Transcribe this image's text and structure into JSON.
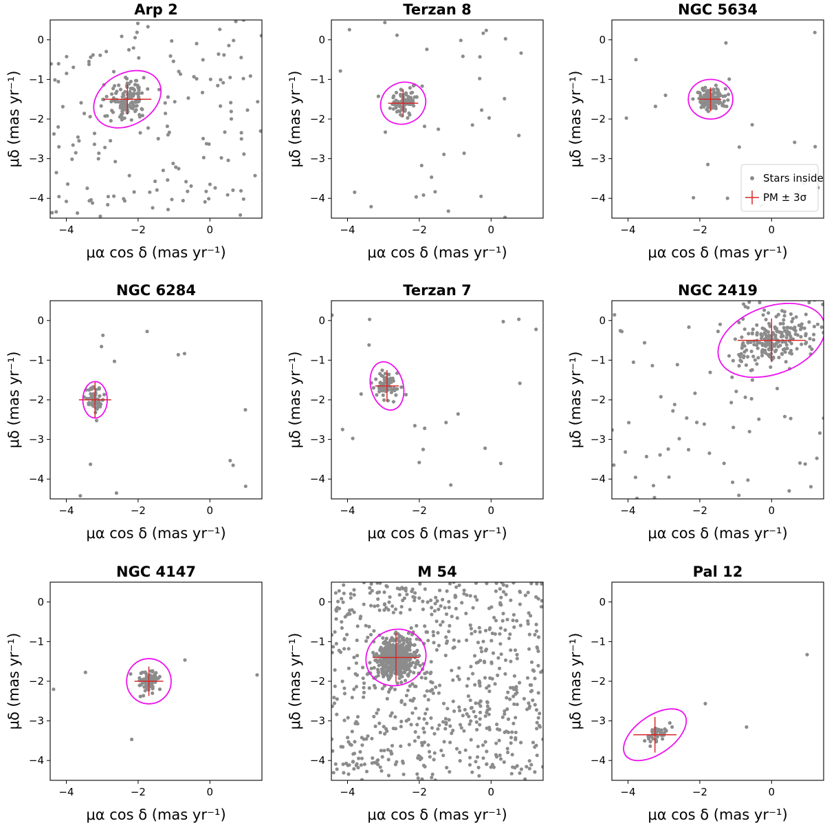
{
  "figure": {
    "xlabel": "μα cos δ (mas yr⁻¹)",
    "ylabel": "μδ (mas yr⁻¹)",
    "legend": {
      "stars_label": "Stars inside rt",
      "pm_label": "PM ± 3σ"
    }
  },
  "chart_data": [
    {
      "type": "scatter",
      "title": "Arp 2",
      "xlim": [
        -4.45,
        1.45
      ],
      "ylim": [
        -4.5,
        0.5
      ],
      "xticks": [
        -4,
        -2,
        0
      ],
      "yticks": [
        0,
        -1,
        -2,
        -3,
        -4
      ],
      "center": [
        -2.3,
        -1.5
      ],
      "xerr": 0.67,
      "yerr": 0.38,
      "ellipse": {
        "rx": 1.0,
        "ry": 0.65,
        "angle_deg": 30
      },
      "cluster": {
        "n": 130,
        "sx": 0.3,
        "sy": 0.22
      },
      "field": {
        "n": 150,
        "xrange": [
          -4.45,
          1.45
        ],
        "yrange": [
          -4.5,
          0.5
        ]
      }
    },
    {
      "type": "scatter",
      "title": "Terzan 8",
      "xlim": [
        -4.45,
        1.45
      ],
      "ylim": [
        -4.5,
        0.5
      ],
      "xticks": [
        -4,
        -2,
        0
      ],
      "yticks": [
        0,
        -1,
        -2,
        -3,
        -4
      ],
      "center": [
        -2.45,
        -1.6
      ],
      "xerr": 0.42,
      "yerr": 0.35,
      "ellipse": {
        "rx": 0.64,
        "ry": 0.52,
        "angle_deg": 25
      },
      "cluster": {
        "n": 90,
        "sx": 0.18,
        "sy": 0.14
      },
      "field": {
        "n": 35,
        "xrange": [
          -4.45,
          1.45
        ],
        "yrange": [
          -4.5,
          0.5
        ]
      }
    },
    {
      "type": "scatter",
      "title": "NGC 5634",
      "xlim": [
        -4.45,
        1.45
      ],
      "ylim": [
        -4.5,
        0.5
      ],
      "xticks": [
        -4,
        -2,
        0
      ],
      "yticks": [
        0,
        -1,
        -2,
        -3,
        -4
      ],
      "center": [
        -1.7,
        -1.5
      ],
      "xerr": 0.3,
      "yerr": 0.3,
      "ellipse": {
        "rx": 0.62,
        "ry": 0.5,
        "angle_deg": 0
      },
      "cluster": {
        "n": 140,
        "sx": 0.2,
        "sy": 0.14
      },
      "field": {
        "n": 20,
        "xrange": [
          -4.45,
          1.45
        ],
        "yrange": [
          -4.5,
          0.5
        ]
      },
      "legend": true
    },
    {
      "type": "scatter",
      "title": "NGC 6284",
      "xlim": [
        -4.45,
        1.45
      ],
      "ylim": [
        -4.5,
        0.5
      ],
      "xticks": [
        -4,
        -2,
        0
      ],
      "yticks": [
        0,
        -1,
        -2,
        -3,
        -4
      ],
      "center": [
        -3.2,
        -2.0
      ],
      "xerr": 0.45,
      "yerr": 0.45,
      "ellipse": {
        "rx": 0.34,
        "ry": 0.46,
        "angle_deg": 0
      },
      "cluster": {
        "n": 55,
        "sx": 0.12,
        "sy": 0.15
      },
      "field": {
        "n": 16,
        "xrange": [
          -4.45,
          1.45
        ],
        "yrange": [
          -4.5,
          0.5
        ]
      }
    },
    {
      "type": "scatter",
      "title": "Terzan 7",
      "xlim": [
        -4.45,
        1.45
      ],
      "ylim": [
        -4.5,
        0.5
      ],
      "xticks": [
        -4,
        -2,
        0
      ],
      "yticks": [
        0,
        -1,
        -2,
        -3,
        -4
      ],
      "center": [
        -2.9,
        -1.65
      ],
      "xerr": 0.33,
      "yerr": 0.4,
      "ellipse": {
        "rx": 0.45,
        "ry": 0.62,
        "angle_deg": 15
      },
      "cluster": {
        "n": 70,
        "sx": 0.15,
        "sy": 0.15
      },
      "field": {
        "n": 22,
        "xrange": [
          -4.45,
          1.45
        ],
        "yrange": [
          -4.5,
          0.5
        ]
      }
    },
    {
      "type": "scatter",
      "title": "NGC 2419",
      "xlim": [
        -4.45,
        1.45
      ],
      "ylim": [
        -4.5,
        0.5
      ],
      "xticks": [
        -4,
        -2,
        0
      ],
      "yticks": [
        0,
        -1,
        -2,
        -3,
        -4
      ],
      "center": [
        0.0,
        -0.5
      ],
      "xerr": 0.95,
      "yerr": 0.55,
      "ellipse": {
        "rx": 1.55,
        "ry": 0.85,
        "angle_deg": 20
      },
      "cluster": {
        "n": 200,
        "sx": 0.5,
        "sy": 0.27
      },
      "field": {
        "n": 80,
        "xrange": [
          -4.45,
          1.45
        ],
        "yrange": [
          -4.5,
          0.5
        ]
      }
    },
    {
      "type": "scatter",
      "title": "NGC 4147",
      "xlim": [
        -4.45,
        1.45
      ],
      "ylim": [
        -4.5,
        0.5
      ],
      "xticks": [
        -4,
        -2,
        0
      ],
      "yticks": [
        0,
        -1,
        -2,
        -3,
        -4
      ],
      "center": [
        -1.7,
        -2.0
      ],
      "xerr": 0.4,
      "yerr": 0.37,
      "ellipse": {
        "rx": 0.62,
        "ry": 0.57,
        "angle_deg": 0
      },
      "cluster": {
        "n": 80,
        "sx": 0.15,
        "sy": 0.14
      },
      "field": {
        "n": 6,
        "xrange": [
          -4.45,
          1.45
        ],
        "yrange": [
          -4.5,
          0.5
        ]
      }
    },
    {
      "type": "scatter",
      "title": "M 54",
      "xlim": [
        -4.45,
        1.45
      ],
      "ylim": [
        -4.5,
        0.5
      ],
      "xticks": [
        -4,
        -2,
        0
      ],
      "yticks": [
        0,
        -1,
        -2,
        -3,
        -4
      ],
      "center": [
        -2.65,
        -1.4
      ],
      "xerr": 0.65,
      "yerr": 0.62,
      "ellipse": {
        "rx": 0.85,
        "ry": 0.7,
        "angle_deg": 25
      },
      "cluster": {
        "n": 450,
        "sx": 0.27,
        "sy": 0.24
      },
      "field": {
        "n": 700,
        "xrange": [
          -4.45,
          1.45
        ],
        "yrange": [
          -4.5,
          0.5
        ]
      }
    },
    {
      "type": "scatter",
      "title": "Pal 12",
      "xlim": [
        -4.45,
        1.45
      ],
      "ylim": [
        -4.5,
        0.5
      ],
      "xticks": [
        -4,
        -2,
        0
      ],
      "yticks": [
        0,
        -1,
        -2,
        -3,
        -4
      ],
      "center": [
        -3.25,
        -3.35
      ],
      "xerr": 0.6,
      "yerr": 0.45,
      "ellipse": {
        "rx": 1.0,
        "ry": 0.48,
        "angle_deg": 35
      },
      "cluster": {
        "n": 40,
        "sx": 0.2,
        "sy": 0.12
      },
      "field": {
        "n": 3,
        "xrange": [
          -4.45,
          1.45
        ],
        "yrange": [
          -4.5,
          0.5
        ]
      }
    }
  ]
}
